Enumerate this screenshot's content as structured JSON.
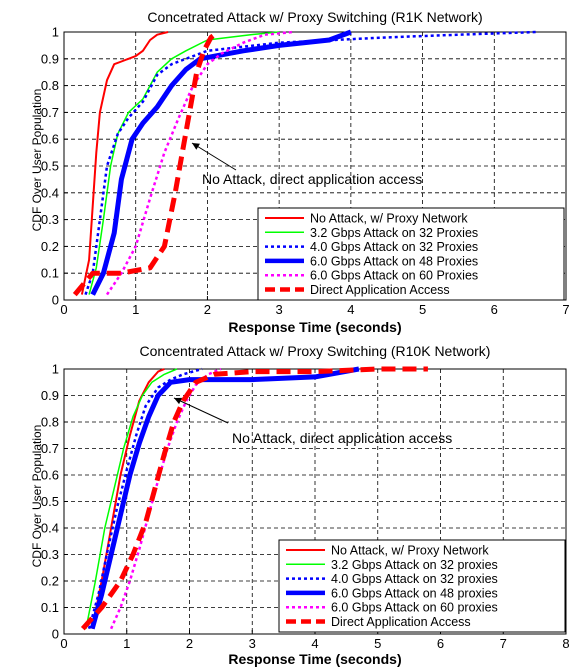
{
  "chart_data": [
    {
      "type": "line",
      "title": "Concetrated Attack w/ Proxy Switching (R1K Network)",
      "xlabel": "Response Time (seconds)",
      "ylabel": "CDF Over User Population",
      "xlim": [
        0,
        7
      ],
      "ylim": [
        0,
        1
      ],
      "xticks": [
        "0",
        "1",
        "2",
        "3",
        "4",
        "5",
        "6",
        "7"
      ],
      "yticks": [
        "0",
        "0.1",
        "0.2",
        "0.3",
        "0.4",
        "0.5",
        "0.6",
        "0.7",
        "0.8",
        "0.9",
        "1"
      ],
      "grid": true,
      "legend_position": "bottom-right",
      "annotation": "No Attack, direct application access",
      "series": [
        {
          "name": "No Attack, w/ Proxy Network",
          "color": "#ff0000",
          "dash": "solid",
          "width": 2,
          "x": [
            0.25,
            0.35,
            0.4,
            0.45,
            0.5,
            0.6,
            0.7,
            0.8,
            0.9,
            1.0,
            1.1,
            1.2,
            1.3,
            1.45
          ],
          "y": [
            0.02,
            0.15,
            0.35,
            0.55,
            0.7,
            0.82,
            0.88,
            0.89,
            0.9,
            0.91,
            0.93,
            0.97,
            0.99,
            1.0
          ]
        },
        {
          "name": "3.2 Gbps Attack on 32 Proxies",
          "color": "#00ff00",
          "dash": "solid",
          "width": 1.5,
          "x": [
            0.35,
            0.45,
            0.55,
            0.65,
            0.75,
            0.9,
            1.1,
            1.3,
            1.5,
            1.7,
            2.0,
            2.3,
            2.6,
            3.0
          ],
          "y": [
            0.02,
            0.12,
            0.3,
            0.5,
            0.62,
            0.7,
            0.75,
            0.85,
            0.9,
            0.93,
            0.97,
            0.98,
            0.99,
            1.0
          ]
        },
        {
          "name": "4.0 Gbps Attack on 32 Proxies",
          "color": "#0000ff",
          "dash": "dotted",
          "width": 2.5,
          "x": [
            0.3,
            0.4,
            0.5,
            0.6,
            0.75,
            0.9,
            1.1,
            1.3,
            1.5,
            1.7,
            2.0,
            3.0,
            4.5,
            5.5,
            6.6
          ],
          "y": [
            0.02,
            0.1,
            0.3,
            0.5,
            0.62,
            0.68,
            0.74,
            0.84,
            0.88,
            0.9,
            0.93,
            0.96,
            0.98,
            0.99,
            1.0
          ]
        },
        {
          "name": "6.0 Gbps Attack on 48 Proxies",
          "color": "#0000ff",
          "dash": "solid",
          "width": 5,
          "x": [
            0.4,
            0.55,
            0.7,
            0.8,
            0.95,
            1.1,
            1.3,
            1.5,
            1.7,
            1.9,
            2.5,
            3.0,
            3.7,
            4.0
          ],
          "y": [
            0.02,
            0.1,
            0.25,
            0.45,
            0.6,
            0.66,
            0.72,
            0.8,
            0.86,
            0.9,
            0.93,
            0.95,
            0.97,
            1.0
          ]
        },
        {
          "name": "6.0 Gbps Attack on 60 Proxies",
          "color": "#ff00ff",
          "dash": "dotted",
          "width": 2.5,
          "x": [
            0.6,
            0.8,
            1.0,
            1.2,
            1.4,
            1.6,
            1.8,
            2.0,
            2.2,
            2.5,
            2.8,
            3.2
          ],
          "y": [
            0.02,
            0.1,
            0.2,
            0.38,
            0.55,
            0.68,
            0.8,
            0.88,
            0.92,
            0.96,
            0.99,
            1.0
          ]
        },
        {
          "name": "Direct Application Access",
          "color": "#ff0000",
          "dash": "dashed",
          "width": 5,
          "x": [
            0.15,
            0.4,
            0.8,
            1.2,
            1.4,
            1.55,
            1.65,
            1.75,
            1.85,
            1.95,
            2.05,
            2.15
          ],
          "y": [
            0.02,
            0.1,
            0.1,
            0.12,
            0.2,
            0.4,
            0.55,
            0.7,
            0.85,
            0.93,
            0.98,
            1.0
          ]
        }
      ]
    },
    {
      "type": "line",
      "title": "Concentrated Attack w/ Proxy Switching (R10K Network)",
      "xlabel": "Response Time (seconds)",
      "ylabel": "CDF Over User Population",
      "xlim": [
        0,
        8
      ],
      "ylim": [
        0,
        1
      ],
      "xticks": [
        "0",
        "1",
        "2",
        "3",
        "4",
        "5",
        "6",
        "7",
        "8"
      ],
      "yticks": [
        "0",
        "0.1",
        "0.2",
        "0.3",
        "0.4",
        "0.5",
        "0.6",
        "0.7",
        "0.8",
        "0.9",
        "1"
      ],
      "grid": true,
      "legend_position": "bottom-right",
      "annotation": "No Attack, direct application access",
      "series": [
        {
          "name": "No Attack, w/ Proxy Network",
          "color": "#ff0000",
          "dash": "solid",
          "width": 2,
          "x": [
            0.45,
            0.6,
            0.75,
            0.9,
            1.05,
            1.2,
            1.35,
            1.5,
            1.6
          ],
          "y": [
            0.02,
            0.2,
            0.4,
            0.6,
            0.75,
            0.88,
            0.95,
            0.99,
            1.0
          ]
        },
        {
          "name": "3.2 Gbps Attack on 32 proxies",
          "color": "#00ff00",
          "dash": "solid",
          "width": 1.5,
          "x": [
            0.35,
            0.5,
            0.65,
            0.8,
            0.95,
            1.1,
            1.25,
            1.4,
            1.6,
            1.8
          ],
          "y": [
            0.02,
            0.2,
            0.4,
            0.55,
            0.7,
            0.82,
            0.9,
            0.95,
            0.98,
            1.0
          ]
        },
        {
          "name": "4.0 Gbps Attack on 32 proxies",
          "color": "#0000ff",
          "dash": "dotted",
          "width": 2.5,
          "x": [
            0.4,
            0.55,
            0.7,
            0.85,
            1.0,
            1.15,
            1.3,
            1.5,
            1.7,
            1.9,
            2.2
          ],
          "y": [
            0.02,
            0.15,
            0.32,
            0.48,
            0.62,
            0.75,
            0.86,
            0.93,
            0.96,
            0.98,
            1.0
          ]
        },
        {
          "name": "6.0 Gbps Attack on 48 proxies",
          "color": "#0000ff",
          "dash": "solid",
          "width": 5,
          "x": [
            0.45,
            0.6,
            0.75,
            0.9,
            1.05,
            1.2,
            1.35,
            1.5,
            1.7,
            2.0,
            3.0,
            4.0,
            4.7
          ],
          "y": [
            0.02,
            0.15,
            0.3,
            0.45,
            0.6,
            0.72,
            0.82,
            0.9,
            0.95,
            0.96,
            0.96,
            0.97,
            1.0
          ]
        },
        {
          "name": "6.0 Gbps Attack on 60 proxies",
          "color": "#ff00ff",
          "dash": "dotted",
          "width": 2.5,
          "x": [
            0.75,
            0.9,
            1.05,
            1.2,
            1.35,
            1.5,
            1.65,
            1.8,
            1.95,
            2.1,
            2.3,
            2.5
          ],
          "y": [
            0.02,
            0.1,
            0.2,
            0.32,
            0.45,
            0.58,
            0.7,
            0.8,
            0.88,
            0.94,
            0.98,
            1.0
          ]
        },
        {
          "name": "Direct Application Access",
          "color": "#ff0000",
          "dash": "dashed",
          "width": 5,
          "x": [
            0.3,
            0.6,
            0.9,
            1.1,
            1.3,
            1.45,
            1.6,
            1.75,
            1.9,
            2.1,
            2.4,
            3.0,
            4.0,
            5.0,
            5.8
          ],
          "y": [
            0.02,
            0.1,
            0.2,
            0.3,
            0.42,
            0.55,
            0.68,
            0.8,
            0.88,
            0.95,
            0.98,
            0.99,
            0.99,
            1.0,
            1.0
          ]
        }
      ]
    }
  ]
}
